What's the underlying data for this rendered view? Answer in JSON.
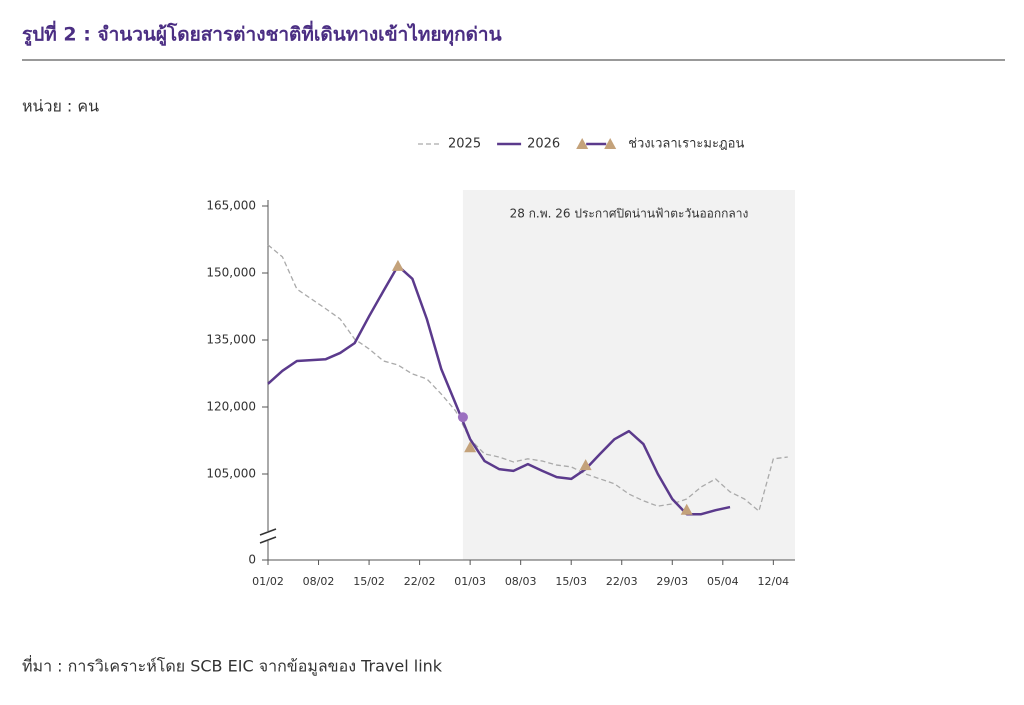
{
  "chart_data": {
    "type": "line",
    "title": "รูปที่ 2 : จำนวนผู้โดยสารต่างชาติที่เดินทางเข้าไทยทุกด่าน",
    "y_label": "หน่วย : คน",
    "source": "ที่มา : การวิเคราะห์โดย SCB EIC จากข้อมูลของ Travel link",
    "annotation": "28 ก.พ. 26 ประกาศปิดน่านฟ้าตะวันออกกลาง",
    "shade_from": 27,
    "axis_break": true,
    "x": [
      0,
      2,
      4,
      6,
      8,
      10,
      12,
      14,
      16,
      18,
      20,
      22,
      24,
      26,
      28,
      30,
      32,
      34,
      36,
      38,
      40,
      42,
      44,
      46,
      48,
      50,
      52,
      54,
      56,
      58,
      60,
      62,
      64,
      66,
      68,
      70,
      72
    ],
    "xlim": [
      0,
      73
    ],
    "xticks": [
      {
        "value": 0,
        "label": "01/02"
      },
      {
        "value": 7,
        "label": "08/02"
      },
      {
        "value": 14,
        "label": "15/02"
      },
      {
        "value": 21,
        "label": "22/02"
      },
      {
        "value": 28,
        "label": "01/03"
      },
      {
        "value": 35,
        "label": "08/03"
      },
      {
        "value": 42,
        "label": "15/03"
      },
      {
        "value": 49,
        "label": "22/03"
      },
      {
        "value": 56,
        "label": "29/03"
      },
      {
        "value": 63,
        "label": "05/04"
      },
      {
        "value": 70,
        "label": "12/04"
      }
    ],
    "ylim": [
      90000,
      165000
    ],
    "yticks": [
      0,
      {
        "value": 105000,
        "label": "105,000"
      },
      {
        "value": 120000,
        "label": "120,000"
      },
      {
        "value": 135000,
        "label": "135,000"
      },
      {
        "value": 150000,
        "label": "150,000"
      },
      {
        "value": 165000,
        "label": "165,000"
      }
    ],
    "series": [
      {
        "name": "2025",
        "color": "#aaaaaa",
        "dashed": true,
        "values": [
          156300,
          153600,
          146400,
          144200,
          142000,
          139700,
          135200,
          133000,
          130300,
          129400,
          127400,
          126300,
          122900,
          119100,
          112800,
          109500,
          108800,
          107700,
          108400,
          107900,
          107000,
          106600,
          105000,
          103900,
          102800,
          100500,
          99000,
          97800,
          98300,
          99400,
          102100,
          103900,
          101000,
          99400,
          96700,
          108400,
          108800
        ]
      },
      {
        "name": "2026",
        "color": "#5b3a8c",
        "values": [
          125200,
          128100,
          130300,
          130500,
          130700,
          132100,
          134300,
          140300,
          146000,
          151600,
          148700,
          139700,
          128500,
          120700,
          112800,
          107900,
          106100,
          105700,
          107200,
          105700,
          104300,
          103900,
          106100,
          109500,
          112800,
          114600,
          111700,
          105000,
          99400,
          96000,
          96000,
          96900,
          97600,
          null,
          null,
          null,
          null
        ]
      }
    ],
    "markers": {
      "name": "ช่วงเวลาเราะมะฎอน",
      "color": "#c4a27a",
      "x": [
        18,
        28,
        44,
        58
      ],
      "values": [
        151600,
        111000,
        107000,
        97000
      ]
    },
    "highlight": {
      "x": 27,
      "value": 117700,
      "color": "#9b6fc0"
    }
  }
}
